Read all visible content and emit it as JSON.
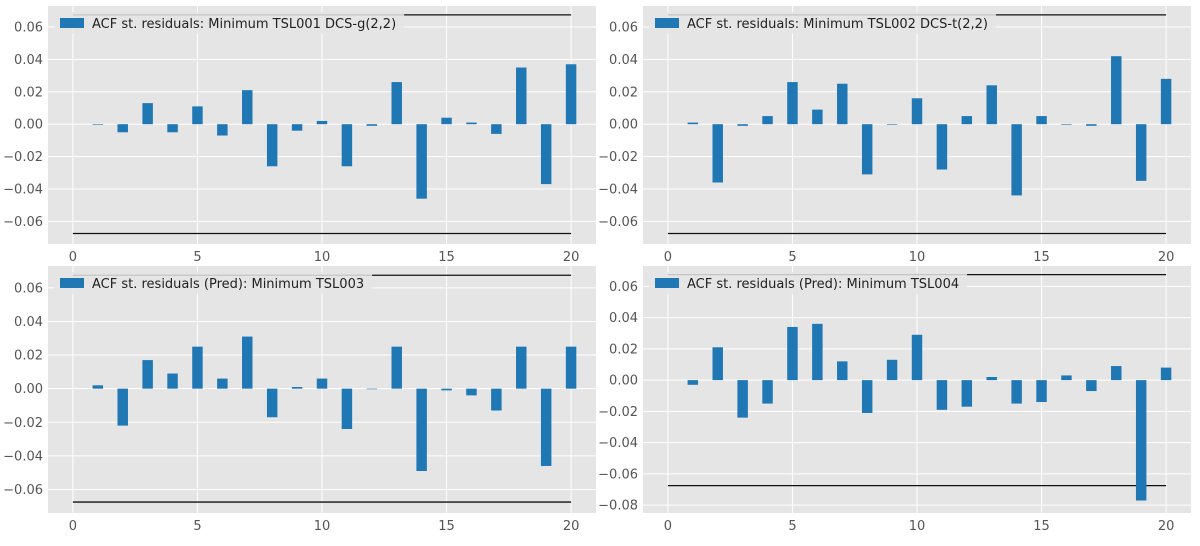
{
  "colors": {
    "bar": "#1f77b4",
    "plot_background": "#e5e5e5",
    "grid": "#ffffff",
    "bound_line": "#111111"
  },
  "chart_data": [
    {
      "type": "bar",
      "legend": "ACF st. residuals: Minimum TSL001 DCS-g(2,2)",
      "legend_position": "top-left",
      "grid": true,
      "x": [
        1,
        2,
        3,
        4,
        5,
        6,
        7,
        8,
        9,
        10,
        11,
        12,
        13,
        14,
        15,
        16,
        17,
        18,
        19,
        20
      ],
      "values": [
        0.0,
        -0.005,
        0.013,
        -0.005,
        0.011,
        -0.007,
        0.021,
        -0.026,
        -0.004,
        0.002,
        -0.026,
        -0.001,
        0.026,
        -0.046,
        0.004,
        0.001,
        -0.006,
        0.035,
        -0.037,
        0.037
      ],
      "confidence_bounds": [
        -0.0675,
        0.0675
      ],
      "xlim": [
        -1,
        21
      ],
      "ylim": [
        -0.074,
        0.073
      ],
      "x_ticks": [
        0,
        5,
        10,
        15,
        20
      ],
      "x_tick_labels": [
        "0",
        "5",
        "10",
        "15",
        "20"
      ],
      "y_ticks": [
        -0.06,
        -0.04,
        -0.02,
        0.0,
        0.02,
        0.04,
        0.06
      ],
      "y_tick_labels": [
        "−0.06",
        "−0.04",
        "−0.02",
        "0.00",
        "0.02",
        "0.04",
        "0.06"
      ]
    },
    {
      "type": "bar",
      "legend": "ACF st. residuals: Minimum TSL002 DCS-t(2,2)",
      "legend_position": "top-left",
      "grid": true,
      "x": [
        1,
        2,
        3,
        4,
        5,
        6,
        7,
        8,
        9,
        10,
        11,
        12,
        13,
        14,
        15,
        16,
        17,
        18,
        19,
        20
      ],
      "values": [
        0.001,
        -0.036,
        -0.001,
        0.005,
        0.026,
        0.009,
        0.025,
        -0.031,
        0.0,
        0.016,
        -0.028,
        0.005,
        0.024,
        -0.044,
        0.005,
        0.0,
        -0.001,
        0.042,
        -0.035,
        0.028
      ],
      "confidence_bounds": [
        -0.0675,
        0.0675
      ],
      "xlim": [
        -1,
        21
      ],
      "ylim": [
        -0.074,
        0.073
      ],
      "x_ticks": [
        0,
        5,
        10,
        15,
        20
      ],
      "x_tick_labels": [
        "0",
        "5",
        "10",
        "15",
        "20"
      ],
      "y_ticks": [
        -0.06,
        -0.04,
        -0.02,
        0.0,
        0.02,
        0.04,
        0.06
      ],
      "y_tick_labels": [
        "−0.06",
        "−0.04",
        "−0.02",
        "0.00",
        "0.02",
        "0.04",
        "0.06"
      ]
    },
    {
      "type": "bar",
      "legend": "ACF st. residuals (Pred): Minimum TSL003",
      "legend_position": "top-left",
      "grid": true,
      "x": [
        1,
        2,
        3,
        4,
        5,
        6,
        7,
        8,
        9,
        10,
        11,
        12,
        13,
        14,
        15,
        16,
        17,
        18,
        19,
        20
      ],
      "values": [
        0.002,
        -0.022,
        0.017,
        0.009,
        0.025,
        0.006,
        0.031,
        -0.017,
        0.001,
        0.006,
        -0.024,
        0.0,
        0.025,
        -0.049,
        -0.001,
        -0.004,
        -0.013,
        0.025,
        -0.046,
        0.025
      ],
      "confidence_bounds": [
        -0.0675,
        0.0675
      ],
      "xlim": [
        -1,
        21
      ],
      "ylim": [
        -0.074,
        0.073
      ],
      "x_ticks": [
        0,
        5,
        10,
        15,
        20
      ],
      "x_tick_labels": [
        "0",
        "5",
        "10",
        "15",
        "20"
      ],
      "y_ticks": [
        -0.06,
        -0.04,
        -0.02,
        0.0,
        0.02,
        0.04,
        0.06
      ],
      "y_tick_labels": [
        "−0.06",
        "−0.04",
        "−0.02",
        "0.00",
        "0.02",
        "0.04",
        "0.06"
      ]
    },
    {
      "type": "bar",
      "legend": "ACF st. residuals (Pred): Minimum TSL004",
      "legend_position": "top-left",
      "grid": true,
      "x": [
        1,
        2,
        3,
        4,
        5,
        6,
        7,
        8,
        9,
        10,
        11,
        12,
        13,
        14,
        15,
        16,
        17,
        18,
        19,
        20
      ],
      "values": [
        -0.003,
        0.021,
        -0.024,
        -0.015,
        0.034,
        0.036,
        0.012,
        -0.021,
        0.013,
        0.029,
        -0.019,
        -0.017,
        0.002,
        -0.015,
        -0.014,
        0.003,
        -0.007,
        0.009,
        -0.077,
        0.008
      ],
      "confidence_bounds": [
        -0.0675,
        0.0675
      ],
      "xlim": [
        -1,
        21
      ],
      "ylim": [
        -0.085,
        0.073
      ],
      "x_ticks": [
        0,
        5,
        10,
        15,
        20
      ],
      "x_tick_labels": [
        "0",
        "5",
        "10",
        "15",
        "20"
      ],
      "y_ticks": [
        -0.08,
        -0.06,
        -0.04,
        -0.02,
        0.0,
        0.02,
        0.04,
        0.06
      ],
      "y_tick_labels": [
        "−0.08",
        "−0.06",
        "−0.04",
        "−0.02",
        "0.00",
        "0.02",
        "0.04",
        "0.06"
      ]
    }
  ]
}
